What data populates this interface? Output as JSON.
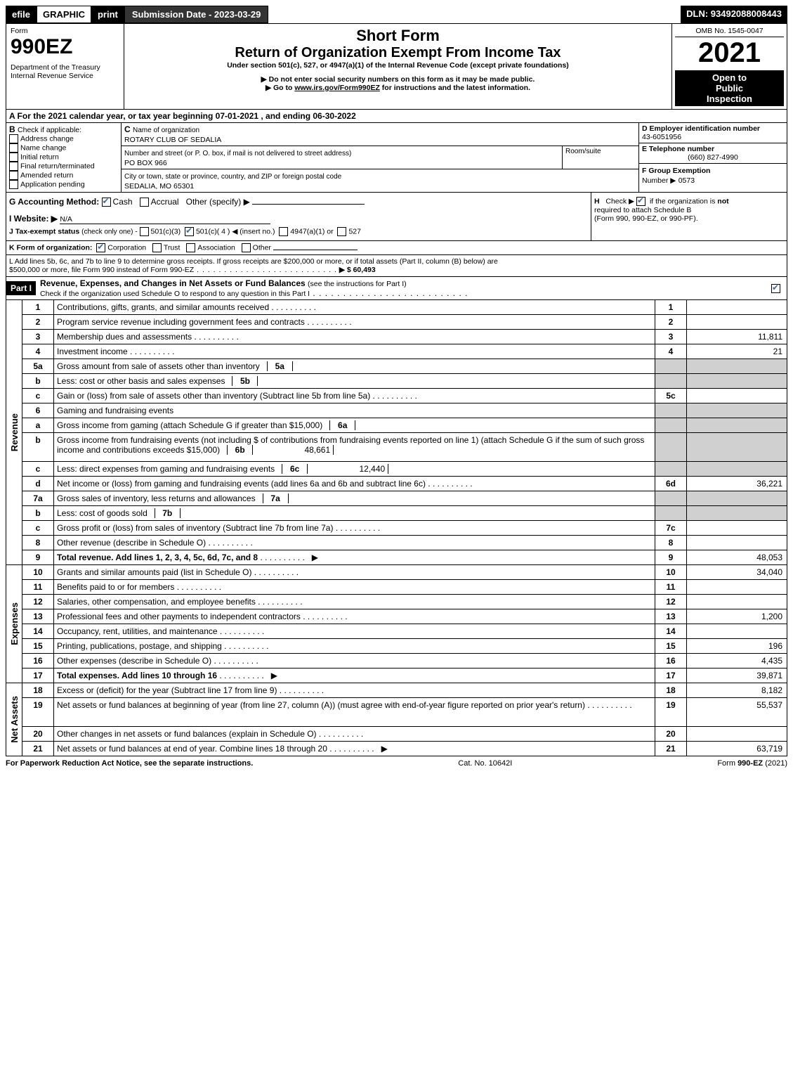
{
  "topbar": {
    "efile": "efile",
    "graphic": "GRAPHIC",
    "print": "print",
    "submission": "Submission Date - 2023-03-29",
    "dln": "DLN: 93492088008443"
  },
  "header": {
    "form_word": "Form",
    "form_num": "990EZ",
    "dept1": "Department of the Treasury",
    "dept2": "Internal Revenue Service",
    "title1": "Short Form",
    "title2": "Return of Organization Exempt From Income Tax",
    "subtitle": "Under section 501(c), 527, or 4947(a)(1) of the Internal Revenue Code (except private foundations)",
    "note1": "▶ Do not enter social security numbers on this form as it may be made public.",
    "note2_pre": "▶ Go to ",
    "note2_link": "www.irs.gov/Form990EZ",
    "note2_post": " for instructions and the latest information.",
    "omb": "OMB No. 1545-0047",
    "year": "2021",
    "open1": "Open to",
    "open2": "Public",
    "open3": "Inspection"
  },
  "sectionA": {
    "a_text": "A  For the 2021 calendar year, or tax year beginning 07-01-2021 , and ending 06-30-2022",
    "b_label": "B",
    "b_text": "Check if applicable:",
    "b_opts": [
      "Address change",
      "Name change",
      "Initial return",
      "Final return/terminated",
      "Amended return",
      "Application pending"
    ],
    "c_label": "C",
    "c_text": "Name of organization",
    "c_name": "ROTARY CLUB OF SEDALIA",
    "c_addr_label": "Number and street (or P. O. box, if mail is not delivered to street address)",
    "c_room": "Room/suite",
    "c_addr": "PO BOX 966",
    "c_city_label": "City or town, state or province, country, and ZIP or foreign postal code",
    "c_city": "SEDALIA, MO  65301",
    "d_label": "D Employer identification number",
    "d_val": "43-6051956",
    "e_label": "E Telephone number",
    "e_val": "(660) 827-4990",
    "f_label": "F Group Exemption",
    "f_label2": "Number  ▶",
    "f_val": "0573",
    "g_label": "G Accounting Method:",
    "g_cash": "Cash",
    "g_accrual": "Accrual",
    "g_other": "Other (specify) ▶",
    "h_label": "H",
    "h_text1": "Check ▶",
    "h_text2": "if the organization is ",
    "h_not": "not",
    "h_text3": "required to attach Schedule B",
    "h_text4": "(Form 990, 990-EZ, or 990-PF).",
    "i_label": "I Website: ▶",
    "i_val": "N/A",
    "j_label": "J Tax-exempt status",
    "j_sub": "(check only one) -",
    "j_1": "501(c)(3)",
    "j_2": "501(c)( 4 ) ◀ (insert no.)",
    "j_3": "4947(a)(1) or",
    "j_4": "527",
    "k_label": "K Form of organization:",
    "k_1": "Corporation",
    "k_2": "Trust",
    "k_3": "Association",
    "k_4": "Other",
    "l_text1": "L Add lines 5b, 6c, and 7b to line 9 to determine gross receipts. If gross receipts are $200,000 or more, or if total assets (Part II, column (B) below) are",
    "l_text2": "$500,000 or more, file Form 990 instead of Form 990-EZ",
    "l_amount": "▶ $ 60,493"
  },
  "part1": {
    "label": "Part I",
    "title": "Revenue, Expenses, and Changes in Net Assets or Fund Balances",
    "title_sub": "(see the instructions for Part I)",
    "check_text": "Check if the organization used Schedule O to respond to any question in this Part I"
  },
  "sections": {
    "revenue_label": "Revenue",
    "expenses_label": "Expenses",
    "netassets_label": "Net Assets"
  },
  "lines": [
    {
      "n": "1",
      "d": "Contributions, gifts, grants, and similar amounts received",
      "box": "1",
      "amt": ""
    },
    {
      "n": "2",
      "d": "Program service revenue including government fees and contracts",
      "box": "2",
      "amt": ""
    },
    {
      "n": "3",
      "d": "Membership dues and assessments",
      "box": "3",
      "amt": "11,811"
    },
    {
      "n": "4",
      "d": "Investment income",
      "box": "4",
      "amt": "21"
    },
    {
      "n": "5a",
      "d": "Gross amount from sale of assets other than inventory",
      "ibox": "5a",
      "iamt": "",
      "box": "",
      "amt": "",
      "shade": true
    },
    {
      "n": "b",
      "d": "Less: cost or other basis and sales expenses",
      "ibox": "5b",
      "iamt": "",
      "box": "",
      "amt": "",
      "shade": true
    },
    {
      "n": "c",
      "d": "Gain or (loss) from sale of assets other than inventory (Subtract line 5b from line 5a)",
      "box": "5c",
      "amt": ""
    },
    {
      "n": "6",
      "d": "Gaming and fundraising events",
      "box": "",
      "amt": "",
      "shade": true,
      "noamt": true
    },
    {
      "n": "a",
      "d": "Gross income from gaming (attach Schedule G if greater than $15,000)",
      "ibox": "6a",
      "iamt": "",
      "box": "",
      "amt": "",
      "shade": true
    },
    {
      "n": "b",
      "d": "Gross income from fundraising events (not including $                       of contributions from fundraising events reported on line 1) (attach Schedule G if the sum of such gross income and contributions exceeds $15,000)",
      "ibox": "6b",
      "iamt": "48,661",
      "box": "",
      "amt": "",
      "shade": true,
      "tall": true
    },
    {
      "n": "c",
      "d": "Less: direct expenses from gaming and fundraising events",
      "ibox": "6c",
      "iamt": "12,440",
      "box": "",
      "amt": "",
      "shade": true
    },
    {
      "n": "d",
      "d": "Net income or (loss) from gaming and fundraising events (add lines 6a and 6b and subtract line 6c)",
      "box": "6d",
      "amt": "36,221"
    },
    {
      "n": "7a",
      "d": "Gross sales of inventory, less returns and allowances",
      "ibox": "7a",
      "iamt": "",
      "box": "",
      "amt": "",
      "shade": true
    },
    {
      "n": "b",
      "d": "Less: cost of goods sold",
      "ibox": "7b",
      "iamt": "",
      "box": "",
      "amt": "",
      "shade": true
    },
    {
      "n": "c",
      "d": "Gross profit or (loss) from sales of inventory (Subtract line 7b from line 7a)",
      "box": "7c",
      "amt": ""
    },
    {
      "n": "8",
      "d": "Other revenue (describe in Schedule O)",
      "box": "8",
      "amt": ""
    },
    {
      "n": "9",
      "d": "Total revenue. Add lines 1, 2, 3, 4, 5c, 6d, 7c, and 8",
      "box": "9",
      "amt": "48,053",
      "bold": true,
      "arrow": true
    }
  ],
  "exp_lines": [
    {
      "n": "10",
      "d": "Grants and similar amounts paid (list in Schedule O)",
      "box": "10",
      "amt": "34,040"
    },
    {
      "n": "11",
      "d": "Benefits paid to or for members",
      "box": "11",
      "amt": ""
    },
    {
      "n": "12",
      "d": "Salaries, other compensation, and employee benefits",
      "box": "12",
      "amt": ""
    },
    {
      "n": "13",
      "d": "Professional fees and other payments to independent contractors",
      "box": "13",
      "amt": "1,200"
    },
    {
      "n": "14",
      "d": "Occupancy, rent, utilities, and maintenance",
      "box": "14",
      "amt": ""
    },
    {
      "n": "15",
      "d": "Printing, publications, postage, and shipping",
      "box": "15",
      "amt": "196"
    },
    {
      "n": "16",
      "d": "Other expenses (describe in Schedule O)",
      "box": "16",
      "amt": "4,435"
    },
    {
      "n": "17",
      "d": "Total expenses. Add lines 10 through 16",
      "box": "17",
      "amt": "39,871",
      "bold": true,
      "arrow": true
    }
  ],
  "na_lines": [
    {
      "n": "18",
      "d": "Excess or (deficit) for the year (Subtract line 17 from line 9)",
      "box": "18",
      "amt": "8,182"
    },
    {
      "n": "19",
      "d": "Net assets or fund balances at beginning of year (from line 27, column (A)) (must agree with end-of-year figure reported on prior year's return)",
      "box": "19",
      "amt": "55,537",
      "tall": true
    },
    {
      "n": "20",
      "d": "Other changes in net assets or fund balances (explain in Schedule O)",
      "box": "20",
      "amt": ""
    },
    {
      "n": "21",
      "d": "Net assets or fund balances at end of year. Combine lines 18 through 20",
      "box": "21",
      "amt": "63,719",
      "arrow": true
    }
  ],
  "footer": {
    "left": "For Paperwork Reduction Act Notice, see the separate instructions.",
    "mid": "Cat. No. 10642I",
    "right_pre": "Form ",
    "right_bold": "990-EZ",
    "right_post": " (2021)"
  }
}
